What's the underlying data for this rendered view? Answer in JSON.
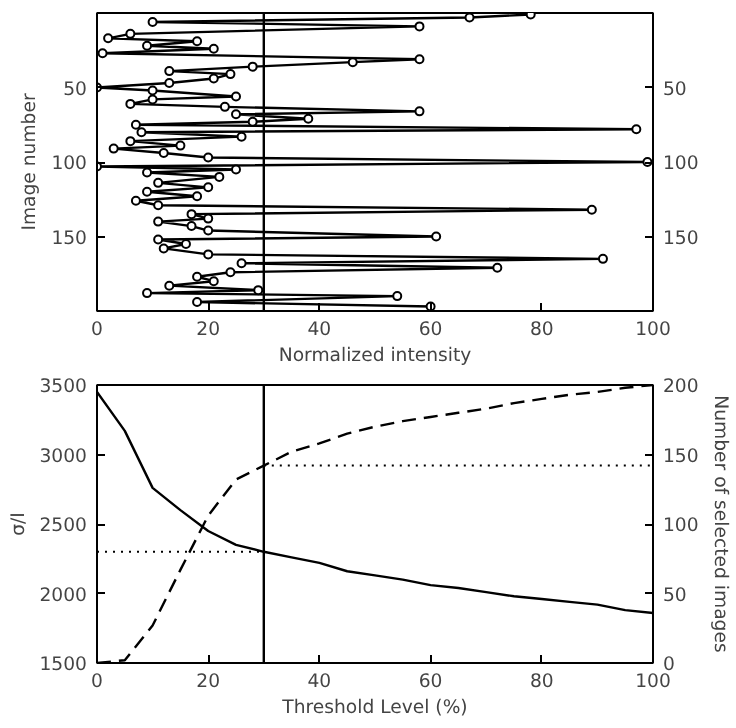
{
  "chart_data": [
    {
      "type": "line",
      "xlabel": "Normalized intensity",
      "ylabel": "Image number",
      "xlim": [
        0,
        100
      ],
      "xticks": [
        0,
        20,
        40,
        60,
        80,
        100
      ],
      "ylim": [
        200,
        0
      ],
      "yticks": [
        50,
        100,
        150
      ],
      "y2lim": [
        200,
        0
      ],
      "y2ticks": [
        50,
        100,
        150
      ],
      "marker": "circle",
      "line_style": "solid",
      "ref_lines": [
        {
          "axis": "x",
          "value": 30
        }
      ],
      "series": [
        {
          "color": "#000000",
          "x": [
            78,
            67,
            10,
            58,
            6,
            2,
            18,
            9,
            21,
            1,
            58,
            46,
            28,
            13,
            24,
            21,
            13,
            0,
            10,
            25,
            10,
            6,
            23,
            58,
            25,
            38,
            28,
            7,
            97,
            8,
            26,
            6,
            15,
            3,
            12,
            20,
            99,
            0,
            25,
            9,
            22,
            11,
            20,
            9,
            18,
            7,
            11,
            89,
            17,
            20,
            11,
            17,
            20,
            61,
            11,
            16,
            12,
            20,
            91,
            26,
            72,
            24,
            18,
            21,
            13,
            29,
            9,
            54,
            18,
            60
          ],
          "values": [
            1,
            3,
            6,
            9,
            14,
            17,
            19,
            22,
            24,
            27,
            31,
            33,
            36,
            39,
            41,
            44,
            47,
            50,
            52,
            56,
            58,
            61,
            63,
            66,
            68,
            71,
            73,
            75,
            78,
            80,
            83,
            86,
            89,
            91,
            94,
            97,
            100,
            103,
            105,
            107,
            110,
            114,
            117,
            120,
            123,
            126,
            129,
            132,
            135,
            138,
            140,
            143,
            146,
            150,
            152,
            155,
            158,
            162,
            165,
            168,
            171,
            174,
            177,
            180,
            183,
            186,
            188,
            190,
            194,
            197
          ]
        }
      ]
    },
    {
      "type": "line",
      "xlabel": "Threshold Level (%)",
      "ylabel": "σ/I",
      "y2label": "Number of selected images",
      "xlim": [
        0,
        100
      ],
      "xticks": [
        0,
        20,
        40,
        60,
        80,
        100
      ],
      "ylim": [
        1500,
        3500
      ],
      "yticks": [
        1500,
        2000,
        2500,
        3000,
        3500
      ],
      "y2lim": [
        0,
        200
      ],
      "y2ticks": [
        0,
        50,
        100,
        150,
        200
      ],
      "ref_lines": [
        {
          "axis": "x",
          "value": 30
        },
        {
          "axis": "y",
          "value": 2300,
          "line_style": "dotted"
        },
        {
          "axis": "y2",
          "value": 142,
          "line_style": "dotted"
        }
      ],
      "series": [
        {
          "color": "#000000",
          "line_style": "solid",
          "x": [
            0,
            5,
            10,
            15,
            20,
            25,
            30,
            35,
            40,
            45,
            50,
            55,
            60,
            65,
            70,
            75,
            80,
            85,
            90,
            95,
            100
          ],
          "values": [
            3450,
            3170,
            2760,
            2600,
            2450,
            2350,
            2300,
            2260,
            2220,
            2160,
            2130,
            2100,
            2060,
            2040,
            2010,
            1980,
            1960,
            1940,
            1920,
            1880,
            1860
          ]
        },
        {
          "color": "#000000",
          "line_style": "dashed",
          "axis": "y2",
          "x": [
            0,
            5,
            10,
            15,
            20,
            25,
            30,
            35,
            40,
            45,
            50,
            55,
            60,
            65,
            70,
            75,
            80,
            85,
            90,
            95,
            100
          ],
          "values": [
            0,
            2,
            27,
            67,
            106,
            132,
            142,
            152,
            158,
            165,
            170,
            174,
            177,
            180,
            183,
            187,
            190,
            193,
            195,
            198,
            200
          ]
        }
      ]
    }
  ]
}
